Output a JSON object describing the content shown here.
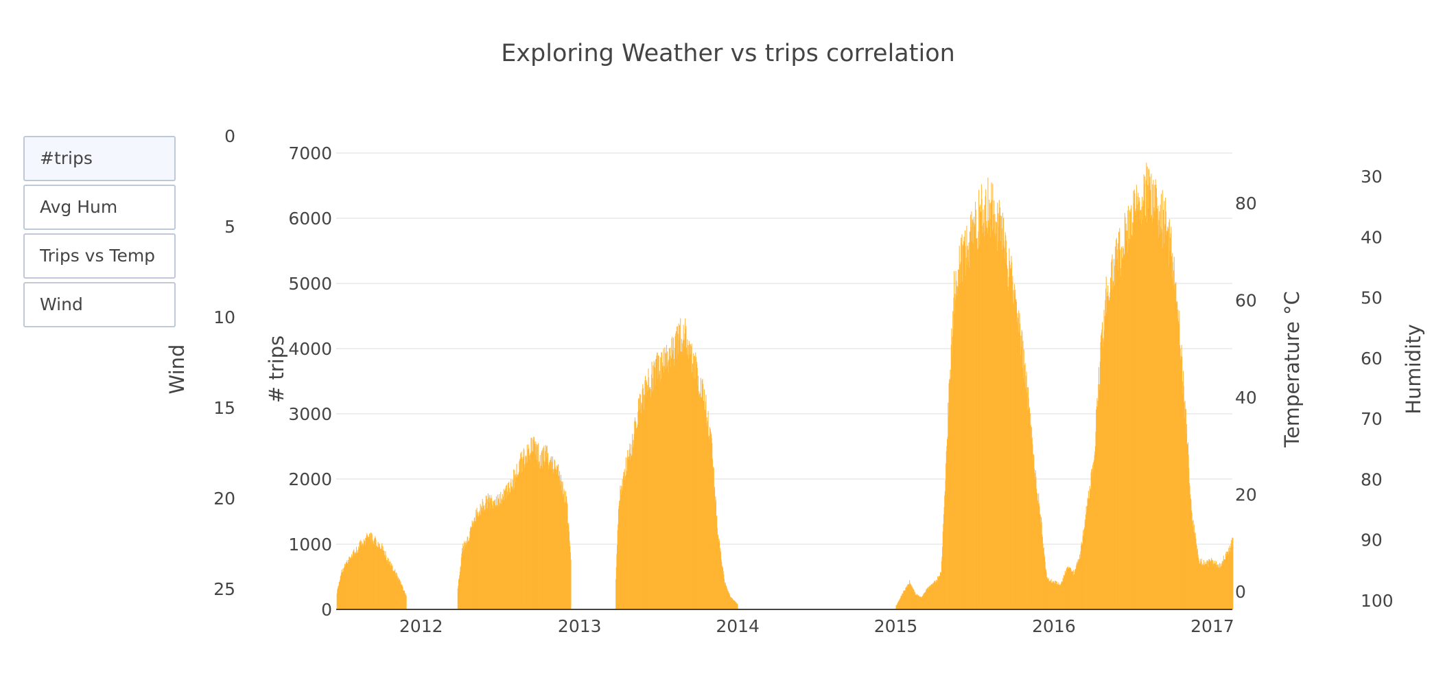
{
  "title": "Exploring Weather vs trips correlation",
  "menu": {
    "buttons": [
      {
        "label": "#trips",
        "active": true
      },
      {
        "label": "Avg Hum",
        "active": false
      },
      {
        "label": "Trips vs Temp",
        "active": false
      },
      {
        "label": "Wind",
        "active": false
      }
    ]
  },
  "colors": {
    "bars": "#ffb432",
    "grid": "#e8e8e8",
    "text": "#444444",
    "button_border": "#bec8d9",
    "button_active_bg": "#f4f7fd"
  },
  "chart_data": {
    "type": "bar",
    "title": "Exploring Weather vs trips correlation",
    "grid": true,
    "x_axis": {
      "type": "date",
      "range": [
        "2011-06-19",
        "2017-02-16"
      ],
      "ticks": [
        "2012",
        "2013",
        "2014",
        "2015",
        "2016",
        "2017"
      ]
    },
    "axes": {
      "trips": {
        "label": "# trips",
        "range": [
          0,
          7000
        ],
        "ticks": [
          0,
          1000,
          2000,
          3000,
          4000,
          5000,
          6000,
          7000
        ]
      },
      "wind": {
        "label": "Wind",
        "range": [
          0,
          25
        ],
        "reversed": true,
        "ticks": [
          0,
          5,
          10,
          15,
          20,
          25
        ]
      },
      "temperature": {
        "label": "Temperature °C",
        "range": [
          0,
          80
        ],
        "ticks": [
          0,
          20,
          40,
          60,
          80
        ]
      },
      "humidity": {
        "label": "Humidity",
        "range": [
          30,
          100
        ],
        "reversed": true,
        "ticks": [
          30,
          40,
          50,
          60,
          70,
          80,
          90,
          100
        ]
      }
    },
    "series": [
      {
        "axis": "trips",
        "points": [
          [
            "2011-06-20",
            280
          ],
          [
            "2011-07-01",
            620
          ],
          [
            "2011-07-15",
            800
          ],
          [
            "2011-08-01",
            950
          ],
          [
            "2011-08-15",
            1080
          ],
          [
            "2011-09-01",
            1200
          ],
          [
            "2011-09-15",
            1150
          ],
          [
            "2011-10-01",
            1050
          ],
          [
            "2011-10-15",
            820
          ],
          [
            "2011-11-01",
            620
          ],
          [
            "2011-11-15",
            420
          ],
          [
            "2011-11-28",
            200
          ],
          [
            "2012-03-25",
            350
          ],
          [
            "2012-04-05",
            1000
          ],
          [
            "2012-04-20",
            1200
          ],
          [
            "2012-05-01",
            1500
          ],
          [
            "2012-05-15",
            1650
          ],
          [
            "2012-06-01",
            1800
          ],
          [
            "2012-06-15",
            1750
          ],
          [
            "2012-07-01",
            1850
          ],
          [
            "2012-07-15",
            1950
          ],
          [
            "2012-08-01",
            2150
          ],
          [
            "2012-08-15",
            2400
          ],
          [
            "2012-09-01",
            2550
          ],
          [
            "2012-09-15",
            2700
          ],
          [
            "2012-10-01",
            2500
          ],
          [
            "2012-10-15",
            2550
          ],
          [
            "2012-11-01",
            2350
          ],
          [
            "2012-11-15",
            2200
          ],
          [
            "2012-12-01",
            1800
          ],
          [
            "2012-12-12",
            800
          ],
          [
            "2013-03-25",
            500
          ],
          [
            "2013-04-01",
            1800
          ],
          [
            "2013-04-15",
            2300
          ],
          [
            "2013-05-01",
            2700
          ],
          [
            "2013-05-15",
            3300
          ],
          [
            "2013-06-01",
            3600
          ],
          [
            "2013-06-15",
            3800
          ],
          [
            "2013-07-01",
            4000
          ],
          [
            "2013-07-15",
            4150
          ],
          [
            "2013-08-01",
            4200
          ],
          [
            "2013-08-15",
            4500
          ],
          [
            "2013-09-01",
            4550
          ],
          [
            "2013-09-15",
            4200
          ],
          [
            "2013-10-01",
            3800
          ],
          [
            "2013-10-15",
            3500
          ],
          [
            "2013-11-01",
            2700
          ],
          [
            "2013-11-15",
            1300
          ],
          [
            "2013-12-01",
            450
          ],
          [
            "2013-12-15",
            200
          ],
          [
            "2014-01-01",
            80
          ],
          [
            "2015-01-01",
            60
          ],
          [
            "2015-01-15",
            250
          ],
          [
            "2015-02-01",
            450
          ],
          [
            "2015-02-15",
            250
          ],
          [
            "2015-03-01",
            200
          ],
          [
            "2015-03-15",
            350
          ],
          [
            "2015-04-01",
            450
          ],
          [
            "2015-04-15",
            600
          ],
          [
            "2015-05-01",
            3200
          ],
          [
            "2015-05-15",
            5200
          ],
          [
            "2015-06-01",
            5800
          ],
          [
            "2015-06-15",
            6000
          ],
          [
            "2015-07-01",
            6300
          ],
          [
            "2015-07-15",
            6500
          ],
          [
            "2015-08-01",
            6700
          ],
          [
            "2015-08-15",
            6500
          ],
          [
            "2015-09-01",
            6200
          ],
          [
            "2015-09-15",
            5700
          ],
          [
            "2015-10-01",
            5300
          ],
          [
            "2015-10-15",
            4500
          ],
          [
            "2015-11-01",
            3500
          ],
          [
            "2015-11-15",
            2500
          ],
          [
            "2015-12-01",
            1500
          ],
          [
            "2015-12-15",
            500
          ],
          [
            "2016-01-01",
            450
          ],
          [
            "2016-01-15",
            400
          ],
          [
            "2016-02-01",
            700
          ],
          [
            "2016-02-15",
            600
          ],
          [
            "2016-03-01",
            900
          ],
          [
            "2016-03-15",
            1600
          ],
          [
            "2016-04-01",
            2400
          ],
          [
            "2016-04-15",
            4000
          ],
          [
            "2016-05-01",
            5200
          ],
          [
            "2016-05-15",
            5600
          ],
          [
            "2016-06-01",
            5900
          ],
          [
            "2016-06-15",
            6200
          ],
          [
            "2016-07-01",
            6500
          ],
          [
            "2016-07-15",
            6700
          ],
          [
            "2016-08-01",
            6900
          ],
          [
            "2016-08-15",
            6800
          ],
          [
            "2016-09-01",
            6600
          ],
          [
            "2016-09-15",
            6300
          ],
          [
            "2016-10-01",
            5800
          ],
          [
            "2016-10-15",
            4700
          ],
          [
            "2016-11-01",
            3000
          ],
          [
            "2016-11-15",
            1500
          ],
          [
            "2016-12-01",
            800
          ],
          [
            "2016-12-15",
            750
          ],
          [
            "2017-01-01",
            800
          ],
          [
            "2017-01-15",
            700
          ],
          [
            "2017-02-01",
            900
          ],
          [
            "2017-02-15",
            1100
          ]
        ]
      }
    ]
  }
}
